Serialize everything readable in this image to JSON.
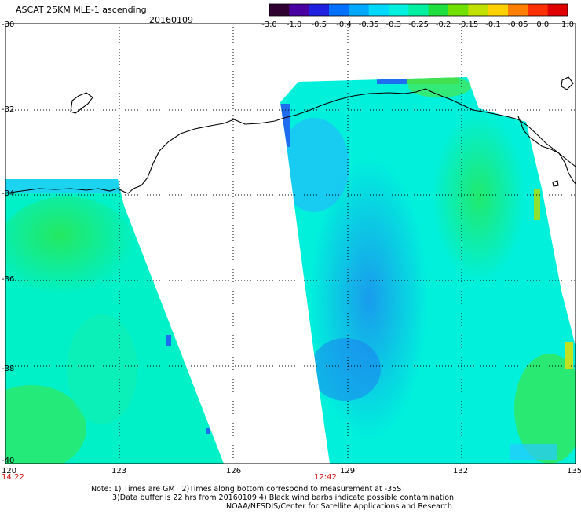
{
  "header": {
    "title": "ASCAT 25KM MLE-1 ascending",
    "date": "20160109"
  },
  "colorbar": {
    "labels": [
      "-3.0",
      "-1.0",
      "-0.5",
      "-0.4",
      "-0.35",
      "-0.3",
      "-0.25",
      "-0.2",
      "-0.15",
      "-0.1",
      "-0.05",
      "0.0",
      "1.0"
    ],
    "colors": [
      "#300030",
      "#4a00a0",
      "#2020e0",
      "#0070ff",
      "#00a8ff",
      "#00d8ff",
      "#00f0e0",
      "#00f0a0",
      "#20e040",
      "#70e000",
      "#c0e000",
      "#ffd000",
      "#ff8000",
      "#ff3000",
      "#e00000"
    ]
  },
  "map": {
    "lon_ticks": [
      "120",
      "123",
      "126",
      "129",
      "132",
      "135"
    ],
    "lat_ticks": [
      "-30",
      "-32",
      "-34",
      "-36",
      "-38",
      "-40"
    ],
    "pass_times": [
      "14:22",
      "12:42"
    ],
    "coastline_color": "#000000",
    "swath_colors": {
      "blue": "#1e6cf0",
      "light_blue": "#28b4ff",
      "cyan": "#00eccc",
      "aqua": "#00f0e0",
      "green": "#24e860",
      "yellow_green": "#b4e81c"
    }
  },
  "footer": {
    "note_line1": "Note: 1) Times are GMT 2)Times along bottom correspond to measurement at -35S",
    "note_line2": "3)Data buffer is 22 hrs from 20160109 4) Black wind barbs indicate possible contamination",
    "credit": "NOAA/NESDIS/Center for Satellite Applications and Research"
  }
}
